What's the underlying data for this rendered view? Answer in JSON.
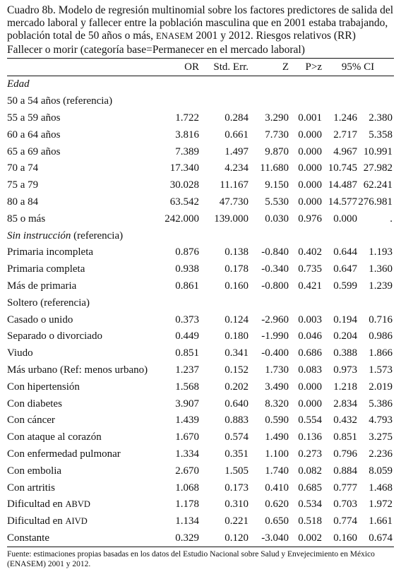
{
  "title_part1": "Cuadro 8b. Modelo de regresión multinomial sobre los factores predictores de salida del mercado laboral y fallecer entre la población masculina que en 2001 estaba trabajando, población total de 50 años o más, ",
  "title_enasem": "ENASEM",
  "title_part2": " 2001 y 2012. Riesgos relativos (RR)",
  "subheading": "Fallecer o morir (categoría base=Permanecer en el mercado laboral)",
  "columns": {
    "or": "OR",
    "se": "Std. Err.",
    "z": "Z",
    "p": "P>z",
    "ci": "95% CI"
  },
  "rows": [
    {
      "label": "Edad",
      "or": "",
      "se": "",
      "z": "",
      "p": "",
      "lo": "",
      "hi": ""
    },
    {
      "label": "50 a 54 años (referencia)",
      "or": "",
      "se": "",
      "z": "",
      "p": "",
      "lo": "",
      "hi": ""
    },
    {
      "label": "55 a 59 años",
      "or": "1.722",
      "se": "0.284",
      "z": "3.290",
      "p": "0.001",
      "lo": "1.246",
      "hi": "2.380"
    },
    {
      "label": "60 a 64 años",
      "or": "3.816",
      "se": "0.661",
      "z": "7.730",
      "p": "0.000",
      "lo": "2.717",
      "hi": "5.358"
    },
    {
      "label": "65 a 69 años",
      "or": "7.389",
      "se": "1.497",
      "z": "9.870",
      "p": "0.000",
      "lo": "4.967",
      "hi": "10.991"
    },
    {
      "label": "70 a 74",
      "or": "17.340",
      "se": "4.234",
      "z": "11.680",
      "p": "0.000",
      "lo": "10.745",
      "hi": "27.982"
    },
    {
      "label": "75 a 79",
      "or": "30.028",
      "se": "11.167",
      "z": "9.150",
      "p": "0.000",
      "lo": "14.487",
      "hi": "62.241"
    },
    {
      "label": "80 a 84",
      "or": "63.542",
      "se": "47.730",
      "z": "5.530",
      "p": "0.000",
      "lo": "14.577",
      "hi": "276.981"
    },
    {
      "label": "85 o más",
      "or": "242.000",
      "se": "139.000",
      "z": "0.030",
      "p": "0.976",
      "lo": "0.000",
      "hi": "."
    },
    {
      "label_it": "Sin instrucción",
      "label_rest": " (referencia)",
      "or": "",
      "se": "",
      "z": "",
      "p": "",
      "lo": "",
      "hi": ""
    },
    {
      "label": "Primaria incompleta",
      "or": "0.876",
      "se": "0.138",
      "z": "-0.840",
      "p": "0.402",
      "lo": "0.644",
      "hi": "1.193"
    },
    {
      "label": "Primaria completa",
      "or": "0.938",
      "se": "0.178",
      "z": "-0.340",
      "p": "0.735",
      "lo": "0.647",
      "hi": "1.360"
    },
    {
      "label": "Más de primaria",
      "or": "0.861",
      "se": "0.160",
      "z": "-0.800",
      "p": "0.421",
      "lo": "0.599",
      "hi": "1.239"
    },
    {
      "label": "Soltero (referencia)",
      "or": "",
      "se": "",
      "z": "",
      "p": "",
      "lo": "",
      "hi": ""
    },
    {
      "label": "Casado o unido",
      "or": "0.373",
      "se": "0.124",
      "z": "-2.960",
      "p": "0.003",
      "lo": "0.194",
      "hi": "0.716"
    },
    {
      "label": "Separado o divorciado",
      "or": "0.449",
      "se": "0.180",
      "z": "-1.990",
      "p": "0.046",
      "lo": "0.204",
      "hi": "0.986"
    },
    {
      "label": "Viudo",
      "or": "0.851",
      "se": "0.341",
      "z": "-0.400",
      "p": "0.686",
      "lo": "0.388",
      "hi": "1.866"
    },
    {
      "label": "Más urbano (Ref: menos urbano)",
      "or": "1.237",
      "se": "0.152",
      "z": "1.730",
      "p": "0.083",
      "lo": "0.973",
      "hi": "1.573"
    },
    {
      "label": "Con hipertensión",
      "or": "1.568",
      "se": "0.202",
      "z": "3.490",
      "p": "0.000",
      "lo": "1.218",
      "hi": "2.019"
    },
    {
      "label": "Con diabetes",
      "or": "3.907",
      "se": "0.640",
      "z": "8.320",
      "p": "0.000",
      "lo": "2.834",
      "hi": "5.386"
    },
    {
      "label": "Con cáncer",
      "or": "1.439",
      "se": "0.883",
      "z": "0.590",
      "p": "0.554",
      "lo": "0.432",
      "hi": "4.793"
    },
    {
      "label": "Con ataque al corazón",
      "or": "1.670",
      "se": "0.574",
      "z": "1.490",
      "p": "0.136",
      "lo": "0.851",
      "hi": "3.275"
    },
    {
      "label": "Con enfermedad pulmonar",
      "or": "1.334",
      "se": "0.351",
      "z": "1.100",
      "p": "0.273",
      "lo": "0.796",
      "hi": "2.236"
    },
    {
      "label": "Con embolia",
      "or": "2.670",
      "se": "1.505",
      "z": "1.740",
      "p": "0.082",
      "lo": "0.884",
      "hi": "8.059"
    },
    {
      "label": "Con artritis",
      "or": "1.068",
      "se": "0.173",
      "z": "0.410",
      "p": "0.685",
      "lo": "0.777",
      "hi": "1.468"
    },
    {
      "label_pre": "Dificultad en ",
      "label_sc": "ABVD",
      "or": "1.178",
      "se": "0.310",
      "z": "0.620",
      "p": "0.534",
      "lo": "0.703",
      "hi": "1.972"
    },
    {
      "label_pre": "Dificultad en ",
      "label_sc": "AIVD",
      "or": "1.134",
      "se": "0.221",
      "z": "0.650",
      "p": "0.518",
      "lo": "0.774",
      "hi": "1.661"
    },
    {
      "label": "Constante",
      "or": "0.329",
      "se": "0.120",
      "z": "-3.040",
      "p": "0.002",
      "lo": "0.160",
      "hi": "0.674"
    }
  ],
  "source_line1": "Fuente: estimaciones propias basadas en los datos del Estudio Nacional sobre Salud y Envejecimiento en México",
  "source_line2": "(ENASEM) 2001 y 2012."
}
